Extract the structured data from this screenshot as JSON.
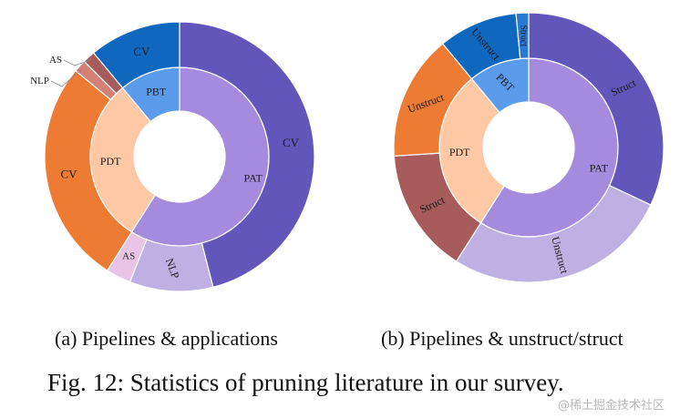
{
  "chart_data": [
    {
      "type": "pie",
      "subtype": "nested-donut",
      "caption": "(a) Pipelines & applications",
      "inner_ring": [
        {
          "label": "PAT",
          "value": 59,
          "color": "#A48BDD"
        },
        {
          "label": "PDT",
          "value": 30,
          "color": "#FFC9A5"
        },
        {
          "label": "PBT",
          "value": 11,
          "color": "#5B9BEC"
        }
      ],
      "outer_ring": [
        {
          "label": "CV",
          "parent": "PAT",
          "value": 46,
          "color": "#6256BA"
        },
        {
          "label": "NLP",
          "parent": "PAT",
          "value": 10,
          "color": "#BEB0E3"
        },
        {
          "label": "AS",
          "parent": "PAT",
          "value": 3,
          "color": "#E8C4E6"
        },
        {
          "label": "CV",
          "parent": "PDT",
          "value": 27,
          "color": "#EE7B33"
        },
        {
          "label": "NLP",
          "parent": "PDT",
          "value": 1.5,
          "color": "#D48077"
        },
        {
          "label": "AS",
          "parent": "PDT",
          "value": 1.5,
          "color": "#A75B5B"
        },
        {
          "label": "CV",
          "parent": "PBT",
          "value": 11,
          "color": "#0F68BE"
        }
      ]
    },
    {
      "type": "pie",
      "subtype": "nested-donut",
      "caption": "(b) Pipelines & unstruct/struct",
      "inner_ring": [
        {
          "label": "PAT",
          "value": 59,
          "color": "#A48BDD"
        },
        {
          "label": "PDT",
          "value": 30,
          "color": "#FFC9A5"
        },
        {
          "label": "PBT",
          "value": 11,
          "color": "#5B9BEC"
        }
      ],
      "outer_ring": [
        {
          "label": "Struct",
          "parent": "PAT",
          "value": 32,
          "color": "#6256BA"
        },
        {
          "label": "Unstruct",
          "parent": "PAT",
          "value": 27,
          "color": "#BEB0E3"
        },
        {
          "label": "Struct",
          "parent": "PDT",
          "value": 15,
          "color": "#A75B5B"
        },
        {
          "label": "Unstruct",
          "parent": "PDT",
          "value": 15,
          "color": "#EE7B33"
        },
        {
          "label": "Unstruct",
          "parent": "PBT",
          "value": 9.5,
          "color": "#0F68BE"
        },
        {
          "label": "Struct",
          "parent": "PBT",
          "value": 1.5,
          "color": "#2B79D2"
        }
      ]
    }
  ],
  "figure_caption": "Fig. 12: Statistics of pruning literature in our survey.",
  "watermark": "@稀土掘金技术社区"
}
